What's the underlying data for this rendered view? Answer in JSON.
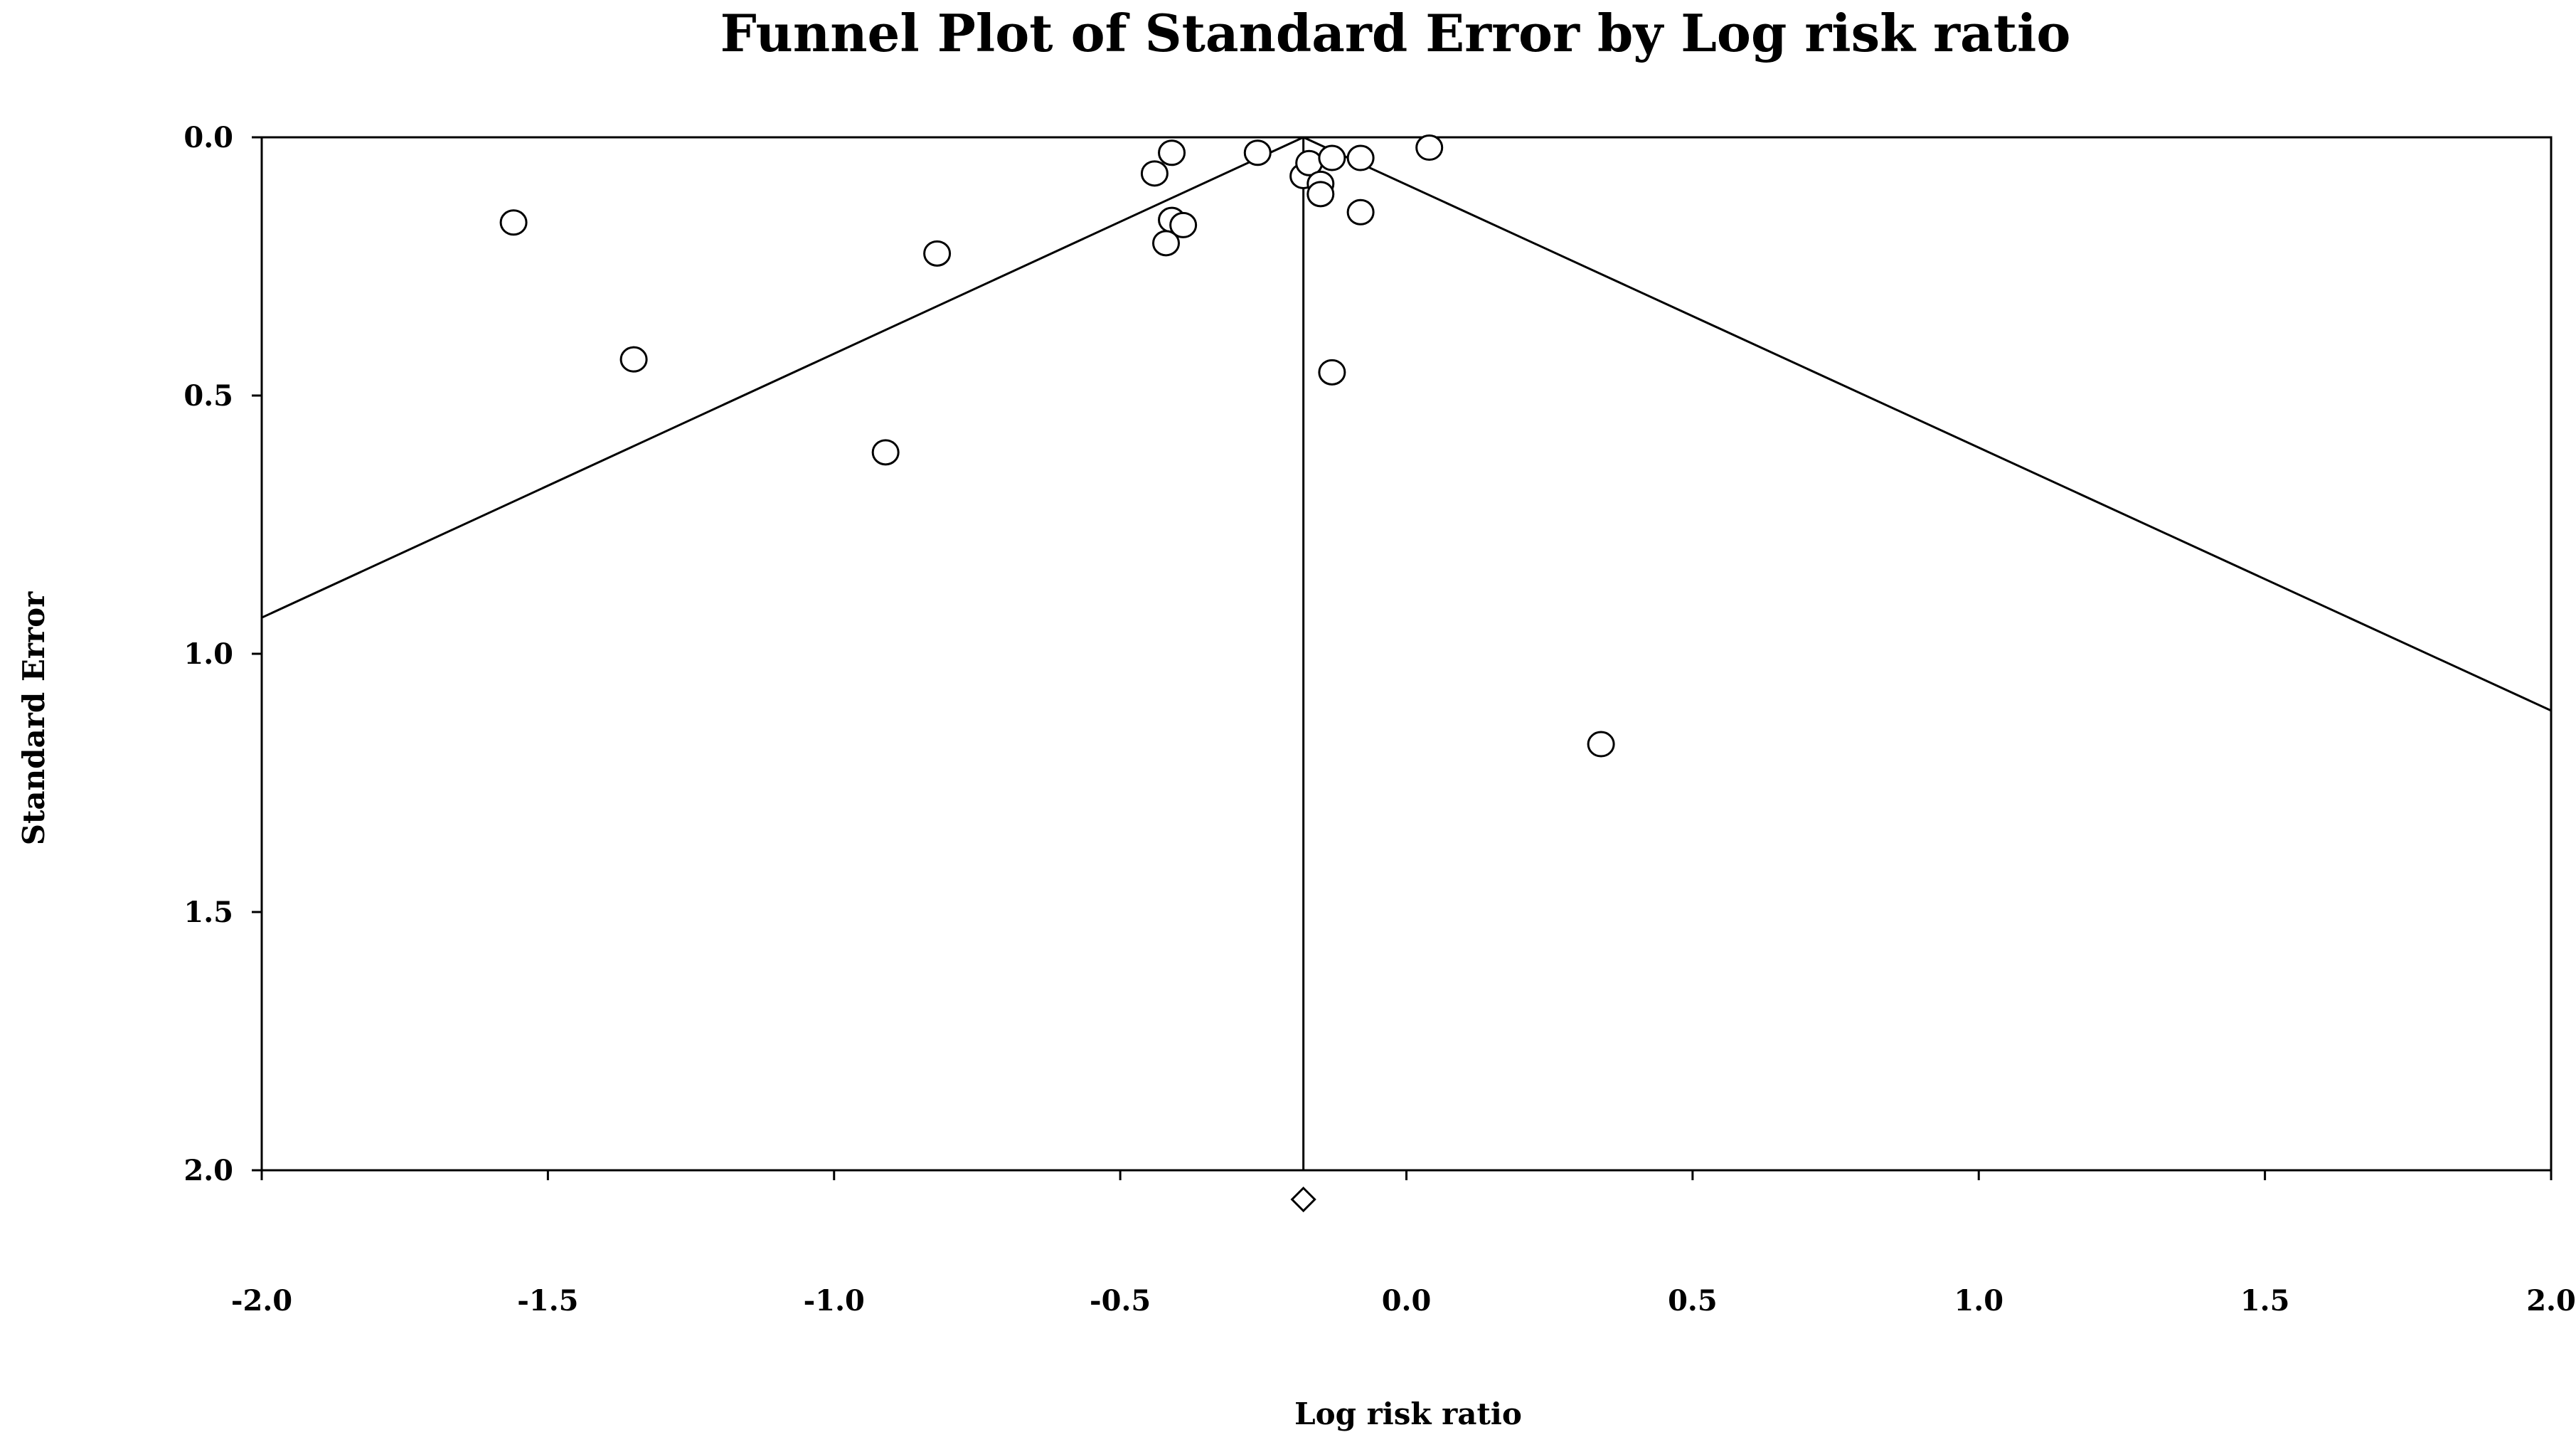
{
  "chart_data": {
    "type": "scatter",
    "title": "Funnel Plot of Standard Error by Log risk ratio",
    "xlabel": "Log risk ratio",
    "ylabel": "Standard Error",
    "xlim": [
      -2.0,
      2.0
    ],
    "ylim": [
      0.0,
      2.0
    ],
    "y_inverted": true,
    "grid": false,
    "legend": "none",
    "x_ticks": [
      "-2.0",
      "-1.5",
      "-1.0",
      "-0.5",
      "0.0",
      "0.5",
      "1.0",
      "1.5",
      "2.0"
    ],
    "y_ticks": [
      "0.0",
      "0.5",
      "1.0",
      "1.5",
      "2.0"
    ],
    "x_tick_values": [
      -2.0,
      -1.5,
      -1.0,
      -0.5,
      0.0,
      0.5,
      1.0,
      1.5,
      2.0
    ],
    "y_tick_values": [
      0.0,
      0.5,
      1.0,
      1.5,
      2.0
    ],
    "pooled_estimate": -0.18,
    "series": [
      {
        "marker": "circle",
        "points": [
          {
            "x": -1.56,
            "y": 0.165
          },
          {
            "x": -1.35,
            "y": 0.43
          },
          {
            "x": -0.91,
            "y": 0.61
          },
          {
            "x": -0.82,
            "y": 0.225
          },
          {
            "x": -0.44,
            "y": 0.07
          },
          {
            "x": -0.41,
            "y": 0.03
          },
          {
            "x": -0.41,
            "y": 0.16
          },
          {
            "x": -0.39,
            "y": 0.17
          },
          {
            "x": -0.42,
            "y": 0.205
          },
          {
            "x": -0.26,
            "y": 0.03
          },
          {
            "x": -0.18,
            "y": 0.075
          },
          {
            "x": -0.17,
            "y": 0.05
          },
          {
            "x": -0.15,
            "y": 0.09
          },
          {
            "x": -0.15,
            "y": 0.11
          },
          {
            "x": -0.13,
            "y": 0.04
          },
          {
            "x": -0.08,
            "y": 0.04
          },
          {
            "x": -0.08,
            "y": 0.145
          },
          {
            "x": -0.13,
            "y": 0.455
          },
          {
            "x": 0.04,
            "y": 0.02
          },
          {
            "x": 0.34,
            "y": 1.175
          }
        ]
      }
    ],
    "funnel_lines": [
      {
        "from": {
          "x": -0.18,
          "y": 0.0
        },
        "to": {
          "x": -2.0,
          "y": 0.93
        }
      },
      {
        "from": {
          "x": -0.18,
          "y": 0.0
        },
        "to": {
          "x": 2.0,
          "y": 1.11
        }
      }
    ],
    "summary_marker": {
      "shape": "diamond",
      "x": -0.18
    }
  }
}
